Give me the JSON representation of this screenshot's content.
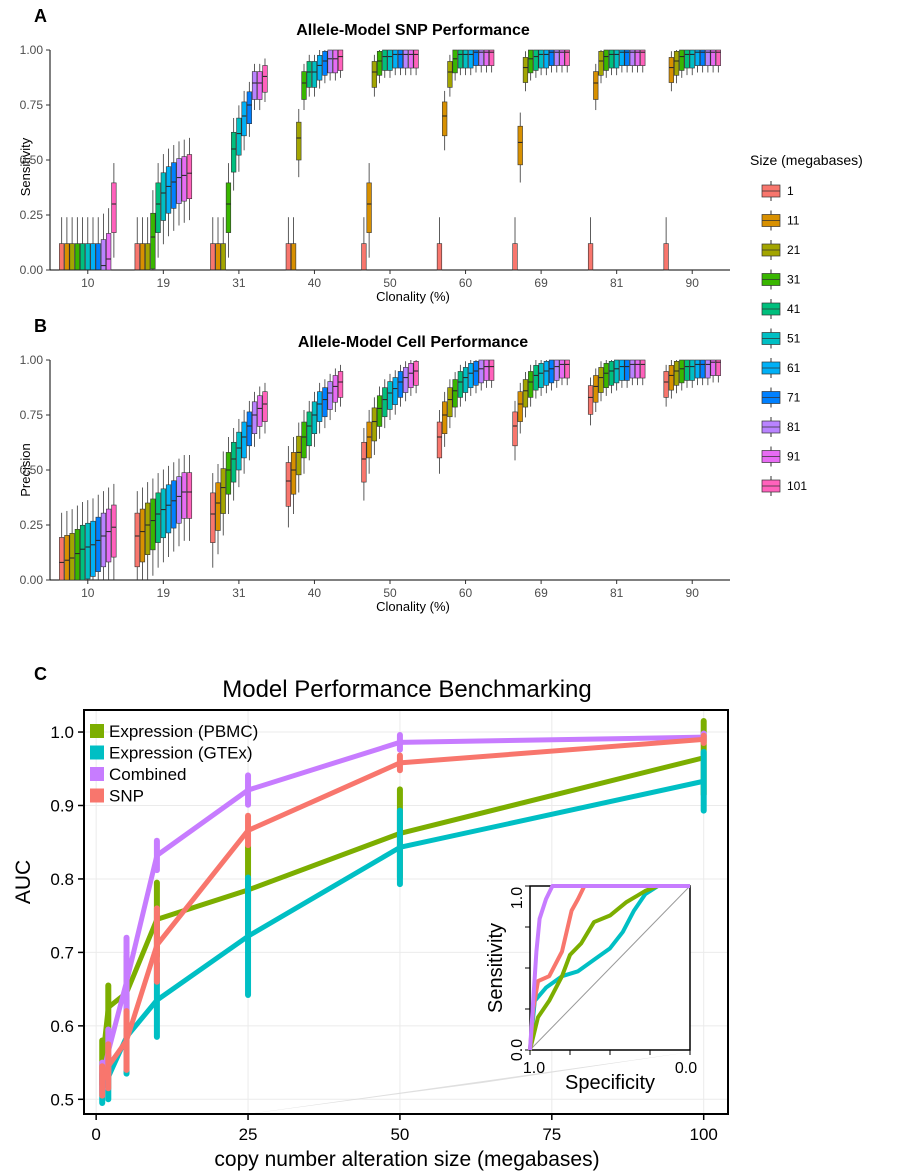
{
  "colors": {
    "sizes": [
      "#F8766D",
      "#D89000",
      "#A3A500",
      "#39B600",
      "#00BF7D",
      "#00BFC4",
      "#00B0F6",
      "#0080FF",
      "#B983FF",
      "#E76BF3",
      "#FF62BC"
    ],
    "expression_pbmc": "#7CAE00",
    "expression_gtex": "#00BFC4",
    "combined": "#C77CFF",
    "snp": "#F8766D"
  },
  "panels": {
    "a_letter": "A",
    "b_letter": "B",
    "c_letter": "C"
  },
  "legend_size": {
    "title": "Size (megabases)",
    "labels": [
      "1",
      "11",
      "21",
      "31",
      "41",
      "51",
      "61",
      "71",
      "81",
      "91",
      "101"
    ]
  },
  "chart_data": [
    {
      "type": "box",
      "title": "Allele-Model SNP Performance",
      "xlabel": "Clonality (%)",
      "ylabel": "Sensitivity",
      "categories": [
        "10",
        "19",
        "31",
        "40",
        "50",
        "60",
        "69",
        "81",
        "90"
      ],
      "yticks": [
        "0.00",
        "0.25",
        "0.50",
        "0.75",
        "1.00"
      ],
      "ylim": [
        0,
        1
      ],
      "group_by": "Size (megabases)",
      "groups": [
        "1",
        "11",
        "21",
        "31",
        "41",
        "51",
        "61",
        "71",
        "81",
        "91",
        "101"
      ],
      "medians": [
        [
          0,
          0,
          0,
          0,
          0,
          0,
          0,
          0,
          0.02,
          0.05,
          0.3
        ],
        [
          0,
          0,
          0,
          0.15,
          0.3,
          0.35,
          0.38,
          0.4,
          0.42,
          0.43,
          0.44
        ],
        [
          0,
          0,
          0,
          0.3,
          0.55,
          0.62,
          0.7,
          0.75,
          0.85,
          0.85,
          0.88
        ],
        [
          0.0,
          0.0,
          0.6,
          0.85,
          0.9,
          0.9,
          0.93,
          0.95,
          0.96,
          0.96,
          0.97
        ],
        [
          0.0,
          0.3,
          0.9,
          0.95,
          0.97,
          0.97,
          0.98,
          0.98,
          0.98,
          0.98,
          0.98
        ],
        [
          0.0,
          0.7,
          0.9,
          0.96,
          0.98,
          0.98,
          0.98,
          0.99,
          0.99,
          0.99,
          0.99
        ],
        [
          0.0,
          0.58,
          0.92,
          0.96,
          0.97,
          0.98,
          0.98,
          0.99,
          0.99,
          0.99,
          0.99
        ],
        [
          0.0,
          0.85,
          0.95,
          0.97,
          0.98,
          0.98,
          0.99,
          0.99,
          0.99,
          0.99,
          0.99
        ],
        [
          0.0,
          0.92,
          0.95,
          0.97,
          0.98,
          0.98,
          0.99,
          0.99,
          0.99,
          0.99,
          0.99
        ]
      ]
    },
    {
      "type": "box",
      "title": "Allele-Model Cell Performance",
      "xlabel": "Clonality (%)",
      "ylabel": "Precision",
      "categories": [
        "10",
        "19",
        "31",
        "40",
        "50",
        "60",
        "69",
        "81",
        "90"
      ],
      "yticks": [
        "0.00",
        "0.25",
        "0.50",
        "0.75",
        "1.00"
      ],
      "ylim": [
        0,
        1
      ],
      "group_by": "Size (megabases)",
      "groups": [
        "1",
        "11",
        "21",
        "31",
        "41",
        "51",
        "61",
        "71",
        "81",
        "91",
        "101"
      ],
      "medians": [
        [
          0.08,
          0.09,
          0.1,
          0.12,
          0.14,
          0.15,
          0.16,
          0.18,
          0.2,
          0.22,
          0.24
        ],
        [
          0.2,
          0.22,
          0.25,
          0.27,
          0.3,
          0.32,
          0.34,
          0.36,
          0.38,
          0.4,
          0.4
        ],
        [
          0.3,
          0.35,
          0.42,
          0.5,
          0.55,
          0.6,
          0.65,
          0.7,
          0.75,
          0.78,
          0.8
        ],
        [
          0.45,
          0.5,
          0.58,
          0.65,
          0.7,
          0.75,
          0.8,
          0.82,
          0.85,
          0.88,
          0.9
        ],
        [
          0.55,
          0.65,
          0.72,
          0.78,
          0.82,
          0.85,
          0.87,
          0.9,
          0.92,
          0.94,
          0.95
        ],
        [
          0.65,
          0.75,
          0.82,
          0.86,
          0.9,
          0.92,
          0.94,
          0.95,
          0.96,
          0.97,
          0.97
        ],
        [
          0.7,
          0.8,
          0.86,
          0.9,
          0.93,
          0.94,
          0.95,
          0.96,
          0.97,
          0.98,
          0.98
        ],
        [
          0.83,
          0.88,
          0.92,
          0.94,
          0.95,
          0.96,
          0.97,
          0.97,
          0.98,
          0.98,
          0.98
        ],
        [
          0.9,
          0.93,
          0.95,
          0.96,
          0.97,
          0.97,
          0.98,
          0.98,
          0.98,
          0.99,
          0.99
        ]
      ]
    },
    {
      "type": "line",
      "title": "Model Performance Benchmarking",
      "xlabel": "copy number alteration size (megabases)",
      "ylabel": "AUC",
      "xlim": [
        -2,
        104
      ],
      "ylim": [
        0.48,
        1.03
      ],
      "xticks": [
        0,
        25,
        50,
        75,
        100
      ],
      "yticks": [
        0.5,
        0.6,
        0.7,
        0.8,
        0.9,
        1.0
      ],
      "series": [
        {
          "name": "Expression (PBMC)",
          "x": [
            1,
            2,
            5,
            10,
            25,
            50,
            100
          ],
          "y": [
            0.55,
            0.625,
            0.645,
            0.745,
            0.785,
            0.862,
            0.965
          ],
          "err": [
            0.03,
            0.03,
            0.05,
            0.05,
            0.06,
            0.06,
            0.05
          ]
        },
        {
          "name": "Expression (GTEx)",
          "x": [
            1,
            2,
            5,
            10,
            25,
            50,
            100
          ],
          "y": [
            0.515,
            0.53,
            0.585,
            0.635,
            0.722,
            0.843,
            0.933
          ],
          "err": [
            0.02,
            0.03,
            0.05,
            0.05,
            0.08,
            0.05,
            0.04
          ]
        },
        {
          "name": "Combined",
          "x": [
            1,
            2,
            5,
            10,
            25,
            50,
            100
          ],
          "y": [
            0.53,
            0.565,
            0.66,
            0.832,
            0.921,
            0.986,
            0.993
          ],
          "err": [
            0.02,
            0.03,
            0.06,
            0.02,
            0.02,
            0.01,
            0.005
          ]
        },
        {
          "name": "SNP",
          "x": [
            1,
            2,
            5,
            10,
            25,
            50,
            100
          ],
          "y": [
            0.525,
            0.545,
            0.58,
            0.71,
            0.866,
            0.958,
            0.99
          ],
          "err": [
            0.02,
            0.03,
            0.04,
            0.05,
            0.02,
            0.01,
            0.005
          ]
        }
      ],
      "inset": {
        "type": "roc",
        "xlabel": "Specificity",
        "ylabel": "Sensitivity",
        "xticks": [
          "1.0",
          "0.0"
        ],
        "yticks": [
          "0.0",
          "1.0"
        ],
        "curves": [
          {
            "name": "Combined",
            "points": [
              [
                0,
                0
              ],
              [
                0.02,
                0.3
              ],
              [
                0.04,
                0.6
              ],
              [
                0.06,
                0.8
              ],
              [
                0.1,
                0.92
              ],
              [
                0.14,
                1.0
              ],
              [
                1,
                1
              ]
            ]
          },
          {
            "name": "SNP",
            "points": [
              [
                0,
                0
              ],
              [
                0.02,
                0.25
              ],
              [
                0.05,
                0.42
              ],
              [
                0.12,
                0.45
              ],
              [
                0.2,
                0.6
              ],
              [
                0.26,
                0.85
              ],
              [
                0.3,
                0.92
              ],
              [
                0.34,
                1.0
              ],
              [
                1,
                1
              ]
            ]
          },
          {
            "name": "Expression (PBMC)",
            "points": [
              [
                0,
                0
              ],
              [
                0.05,
                0.2
              ],
              [
                0.12,
                0.3
              ],
              [
                0.2,
                0.45
              ],
              [
                0.25,
                0.58
              ],
              [
                0.32,
                0.65
              ],
              [
                0.4,
                0.78
              ],
              [
                0.5,
                0.82
              ],
              [
                0.6,
                0.9
              ],
              [
                0.72,
                0.97
              ],
              [
                0.8,
                1.0
              ],
              [
                1,
                1
              ]
            ]
          },
          {
            "name": "Expression (GTEx)",
            "points": [
              [
                0,
                0
              ],
              [
                0.03,
                0.3
              ],
              [
                0.1,
                0.38
              ],
              [
                0.2,
                0.45
              ],
              [
                0.3,
                0.48
              ],
              [
                0.4,
                0.55
              ],
              [
                0.5,
                0.62
              ],
              [
                0.58,
                0.72
              ],
              [
                0.65,
                0.85
              ],
              [
                0.72,
                0.95
              ],
              [
                0.8,
                1.0
              ],
              [
                1,
                1
              ]
            ]
          }
        ]
      }
    }
  ]
}
